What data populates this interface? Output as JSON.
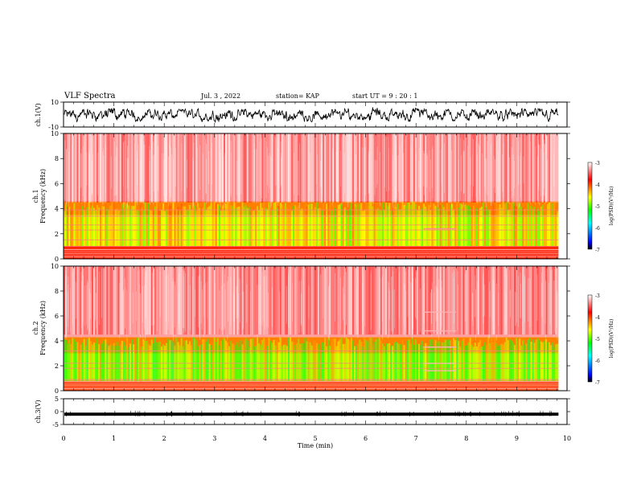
{
  "header": {
    "title": "VLF Spectra",
    "date": "Jul. 3 , 2022",
    "station": "station= KAP",
    "start": "start UT = 9 : 20 : 1"
  },
  "colors": {
    "waveform": "#000000",
    "axes": "#000000",
    "colormap": [
      "#000000",
      "#0000ff",
      "#00ffff",
      "#00ff00",
      "#ffff00",
      "#ff0000",
      "#ffffff"
    ]
  },
  "chart_data": [
    {
      "type": "line",
      "panel": "ch1-waveform",
      "ylabel": "ch.1(V)",
      "ylim": [
        -10,
        10
      ],
      "yticks": [
        "10",
        "-10"
      ],
      "xlim": [
        0,
        10
      ],
      "description_of_signal": "dense noise waveform, mostly between about -6 and 5 V",
      "envelope": {
        "x": [
          0,
          1,
          2,
          3,
          4,
          5,
          6,
          7,
          8,
          9,
          9.8
        ],
        "ymin": [
          -6,
          -6,
          -5,
          -6,
          -5,
          -6,
          -5,
          -6,
          -5,
          -6,
          -6
        ],
        "ymax": [
          4,
          5,
          4,
          5,
          4,
          3,
          6,
          5,
          4,
          5,
          5
        ]
      }
    },
    {
      "type": "heatmap",
      "panel": "ch1-spectrogram",
      "ylabel": "Frequency (kHz)",
      "channel_label": "ch.1",
      "xlim": [
        0,
        10
      ],
      "ylim": [
        0,
        10
      ],
      "yticks": [
        "0",
        "2",
        "4",
        "6",
        "8",
        "10"
      ],
      "colorbar": {
        "label": "log(PSD)(V²/Hz)",
        "range": [
          -7,
          -3
        ],
        "ticks": [
          "-3",
          "-4",
          "-5",
          "-6",
          "-7"
        ]
      },
      "bands": [
        {
          "fmin": 0,
          "fmax": 1,
          "logpsd": -3.9
        },
        {
          "fmin": 1,
          "fmax": 3.5,
          "logpsd": -4.6
        },
        {
          "fmin": 3.5,
          "fmax": 4.6,
          "logpsd": -4.2
        },
        {
          "fmin": 4.6,
          "fmax": 10,
          "logpsd": -3.2
        }
      ],
      "data_end_min": 9.83
    },
    {
      "type": "heatmap",
      "panel": "ch2-spectrogram",
      "ylabel": "Frequency (kHz)",
      "channel_label": "ch.2",
      "xlim": [
        0,
        10
      ],
      "ylim": [
        0,
        10
      ],
      "yticks": [
        "0",
        "2",
        "4",
        "6",
        "8",
        "10"
      ],
      "colorbar": {
        "label": "log(PSD)(V²/Hz)",
        "range": [
          -7,
          -3
        ],
        "ticks": [
          "-3",
          "-4",
          "-5",
          "-6",
          "-7"
        ]
      },
      "bands": [
        {
          "fmin": 0,
          "fmax": 0.8,
          "logpsd": -4.0
        },
        {
          "fmin": 0.8,
          "fmax": 3.0,
          "logpsd": -4.8
        },
        {
          "fmin": 3.0,
          "fmax": 4.3,
          "logpsd": -4.2
        },
        {
          "fmin": 4.3,
          "fmax": 10,
          "logpsd": -3.3
        }
      ],
      "data_end_min": 9.83
    },
    {
      "type": "line",
      "panel": "ch3-waveform",
      "ylabel": "ch.3(V)",
      "ylim": [
        -5,
        5
      ],
      "yticks": [
        "5",
        "0",
        "-5"
      ],
      "xlim": [
        0,
        10
      ],
      "xlabel": "Time (min)",
      "xticks": [
        "0",
        "1",
        "2",
        "3",
        "4",
        "5",
        "6",
        "7",
        "8",
        "9",
        "10"
      ],
      "level": -1.0,
      "band_halfwidth": 0.6
    }
  ]
}
